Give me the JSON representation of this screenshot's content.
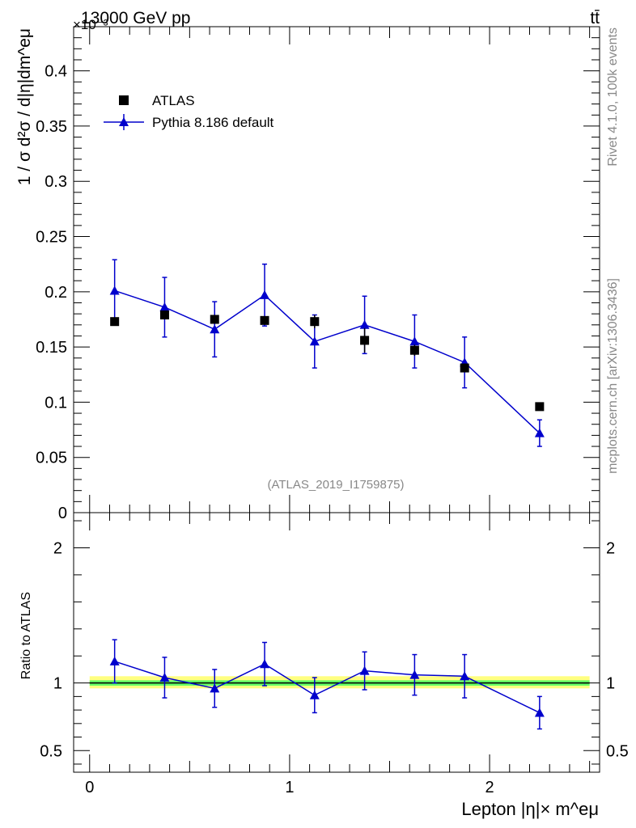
{
  "header": {
    "energy_label": "13000 GeV pp",
    "process_label": "tt̄",
    "exponent_label": "×10⁻³"
  },
  "side_labels": {
    "rivet": "Rivet 4.1.0,  100k events",
    "mcplots": "mcplots.cern.ch [arXiv:1306.3436]"
  },
  "analysis_label": "(ATLAS_2019_I1759875)",
  "legend": {
    "data_label": "ATLAS",
    "mc_label": "Pythia 8.186 default"
  },
  "colors": {
    "data": "#000000",
    "mc": "#0000cc",
    "band_inner": "#66ff66",
    "band_outer": "#ffff80"
  },
  "chart_data": [
    {
      "type": "scatter",
      "panel": "main",
      "title": "",
      "ylabel": "1 / σ  d²σ / d|η|dm^eμ",
      "xlabel": "Lepton |η|× m^eμ",
      "xlim": [
        -0.08,
        2.55
      ],
      "ylim": [
        0,
        0.44
      ],
      "yscale_note": "values ×10⁻³",
      "y_ticks": [
        0,
        0.05,
        0.1,
        0.15,
        0.2,
        0.25,
        0.3,
        0.35,
        0.4
      ],
      "y_tick_labels": [
        "0",
        "0.05",
        "0.1",
        "0.15",
        "0.2",
        "0.25",
        "0.3",
        "0.35",
        "0.4"
      ],
      "series": [
        {
          "name": "ATLAS",
          "marker": "square",
          "x": [
            0.125,
            0.375,
            0.625,
            0.875,
            1.125,
            1.375,
            1.625,
            1.875,
            2.25
          ],
          "y": [
            0.173,
            0.179,
            0.175,
            0.174,
            0.173,
            0.156,
            0.147,
            0.131,
            0.096
          ],
          "yerr": [
            0.002,
            0.003,
            0.003,
            0.003,
            0.006,
            0.011,
            0.005,
            0.004,
            0.002
          ]
        },
        {
          "name": "Pythia 8.186 default",
          "marker": "triangle",
          "x": [
            0.125,
            0.375,
            0.625,
            0.875,
            1.125,
            1.375,
            1.625,
            1.875,
            2.25
          ],
          "y": [
            0.201,
            0.186,
            0.166,
            0.197,
            0.155,
            0.17,
            0.155,
            0.136,
            0.072
          ],
          "yerr": [
            0.028,
            0.027,
            0.025,
            0.028,
            0.024,
            0.026,
            0.024,
            0.023,
            0.012
          ]
        }
      ]
    },
    {
      "type": "line",
      "panel": "ratio",
      "ylabel": "Ratio to ATLAS",
      "xlabel": "Lepton |η|× m^eμ",
      "xlim": [
        -0.08,
        2.55
      ],
      "ylim": [
        0.34,
        2.26
      ],
      "x_ticks": [
        0,
        1,
        2
      ],
      "x_tick_labels": [
        "0",
        "1",
        "2"
      ],
      "y_ticks": [
        0.5,
        1,
        2
      ],
      "y_tick_labels": [
        "0.5",
        "1",
        "2"
      ],
      "band_inner": [
        0.98,
        1.02
      ],
      "band_outer": [
        0.96,
        1.05
      ],
      "series": [
        {
          "name": "Pythia 8.186 default",
          "x": [
            0.125,
            0.375,
            0.625,
            0.875,
            1.125,
            1.375,
            1.625,
            1.875,
            2.25
          ],
          "y": [
            1.16,
            1.04,
            0.96,
            1.14,
            0.91,
            1.09,
            1.06,
            1.05,
            0.78
          ],
          "yerr": [
            0.16,
            0.15,
            0.14,
            0.16,
            0.13,
            0.14,
            0.15,
            0.16,
            0.12
          ]
        }
      ]
    }
  ]
}
